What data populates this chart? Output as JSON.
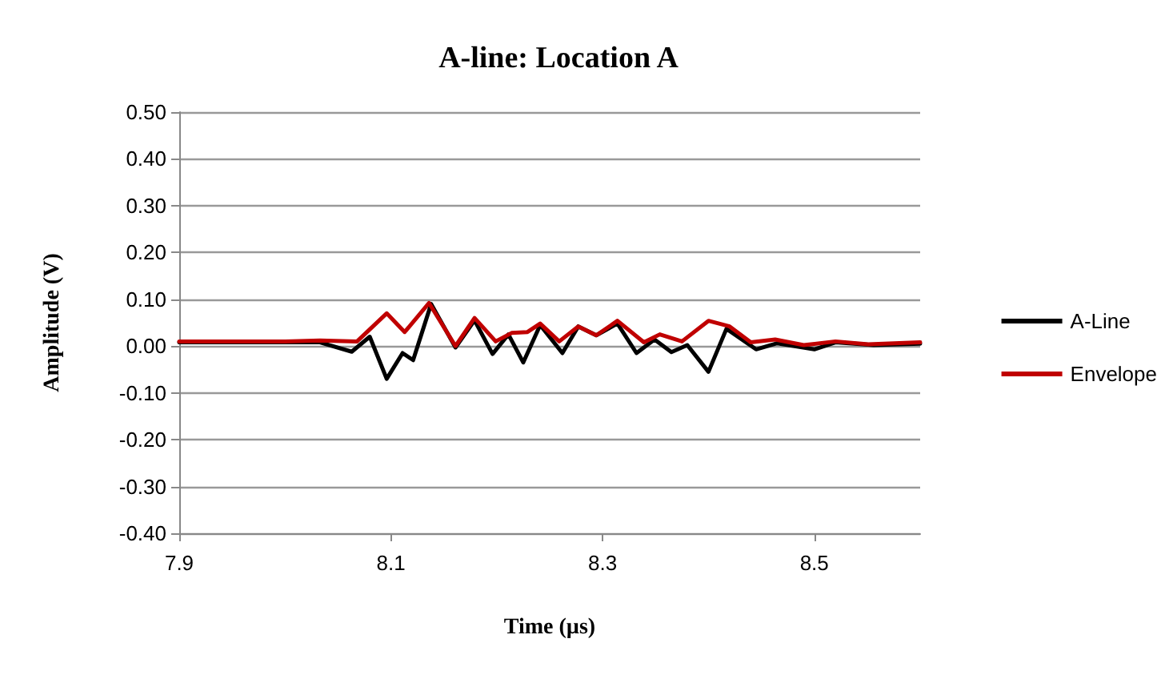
{
  "chart_data": {
    "type": "line",
    "title": "A-line: Location A",
    "xlabel": "Time (µs)",
    "ylabel": "Amplitude (V)",
    "xlim": [
      7.9,
      8.6
    ],
    "xticks": [
      7.9,
      8.1,
      8.3,
      8.5
    ],
    "ylim": [
      -0.4,
      0.5
    ],
    "yticks": [
      {
        "value": -0.4,
        "label": "-0.40"
      },
      {
        "value": -0.3,
        "label": "-0.30"
      },
      {
        "value": -0.2,
        "label": "-0.20"
      },
      {
        "value": -0.1,
        "label": "-0.10"
      },
      {
        "value": 0,
        "label": "0.00"
      },
      {
        "value": 0.1,
        "label": "0.10"
      },
      {
        "value": 0.2,
        "label": "0.20"
      },
      {
        "value": 0.3,
        "label": "0.30"
      },
      {
        "value": 0.4,
        "label": "0.40"
      },
      {
        "value": 0.5,
        "label": "0.50"
      }
    ],
    "grid": "y",
    "legend": "right",
    "marker": "none",
    "line_style": "solid",
    "series": [
      {
        "name": "A-Line",
        "color": "#000000",
        "x": [
          7.9,
          7.95,
          8.0,
          8.033,
          8.063,
          8.08,
          8.096,
          8.111,
          8.121,
          8.138,
          8.161,
          8.179,
          8.196,
          8.211,
          8.225,
          8.241,
          8.262,
          8.277,
          8.294,
          8.314,
          8.332,
          8.349,
          8.365,
          8.38,
          8.4,
          8.417,
          8.445,
          8.465,
          8.5,
          8.52,
          8.556,
          8.6
        ],
        "values": [
          0.008,
          0.008,
          0.008,
          0.008,
          -0.012,
          0.02,
          -0.07,
          -0.015,
          -0.03,
          0.09,
          -0.003,
          0.055,
          -0.017,
          0.025,
          -0.035,
          0.045,
          -0.015,
          0.042,
          0.023,
          0.048,
          -0.015,
          0.014,
          -0.013,
          0.002,
          -0.055,
          0.037,
          -0.007,
          0.006,
          -0.007,
          0.008,
          0.002,
          0.005
        ]
      },
      {
        "name": "Envelope",
        "color": "#c00000",
        "x": [
          7.9,
          7.95,
          8.0,
          8.033,
          8.068,
          8.096,
          8.113,
          8.136,
          8.161,
          8.179,
          8.199,
          8.214,
          8.229,
          8.241,
          8.259,
          8.277,
          8.294,
          8.314,
          8.339,
          8.354,
          8.375,
          8.4,
          8.42,
          8.44,
          8.463,
          8.49,
          8.52,
          8.551,
          8.6
        ],
        "values": [
          0.01,
          0.01,
          0.01,
          0.012,
          0.01,
          0.07,
          0.03,
          0.092,
          0.0,
          0.06,
          0.01,
          0.028,
          0.03,
          0.048,
          0.01,
          0.042,
          0.023,
          0.054,
          0.008,
          0.025,
          0.01,
          0.054,
          0.042,
          0.008,
          0.014,
          0.002,
          0.01,
          0.004,
          0.008
        ]
      }
    ]
  }
}
